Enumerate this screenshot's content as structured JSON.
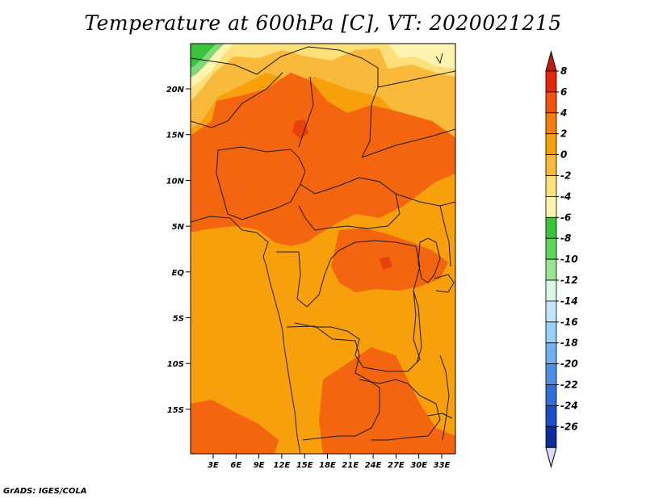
{
  "title": "Temperature at 600hPa [C], VT: 2020021215",
  "credit": "GrADS: IGES/COLA",
  "map": {
    "lat_labels": [
      "20N",
      "15N",
      "10N",
      "5N",
      "EQ",
      "5S",
      "10S",
      "15S"
    ],
    "lon_labels": [
      "3E",
      "6E",
      "9E",
      "12E",
      "15E",
      "18E",
      "21E",
      "24E",
      "27E",
      "30E",
      "33E"
    ],
    "field_colors": {
      "c_6_8": "#e8400e",
      "c_4_6": "#f4650f",
      "c_2_4": "#f8a00c",
      "c_0_2": "#f9b93a",
      "c_m2_0": "#fde07a",
      "c_m4_m2": "#fef4b0",
      "c_m6_m4": "#39c43c",
      "c_m8_m6": "#7fd87a"
    }
  },
  "colorbar": {
    "labels": [
      "8",
      "6",
      "4",
      "2",
      "0",
      "-2",
      "-4",
      "-6",
      "-8",
      "-10",
      "-12",
      "-14",
      "-16",
      "-18",
      "-20",
      "-22",
      "-24",
      "-26"
    ],
    "colors": [
      "#e8260a",
      "#f4500f",
      "#f77d10",
      "#f8a00c",
      "#f9b93a",
      "#fde07a",
      "#fef4b0",
      "#39c43c",
      "#5dd45a",
      "#98e690",
      "#d9f7e6",
      "#c4e4fa",
      "#9acff6",
      "#6eb1ee",
      "#4b90e4",
      "#2f6fda",
      "#1a4fc8",
      "#0c2d9c"
    ],
    "top_arrow_color": "#c61a0c",
    "bottom_arrow_color": "#dcdcf8"
  }
}
